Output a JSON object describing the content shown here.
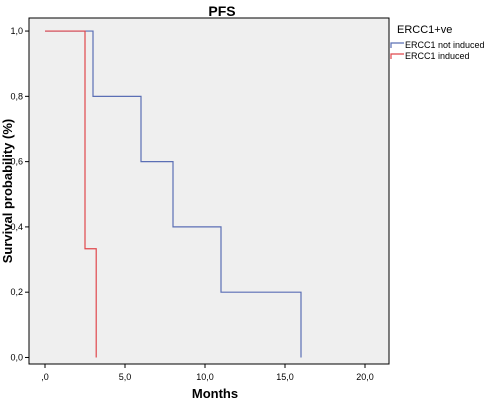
{
  "chart_data": {
    "type": "line",
    "title": "PFS",
    "xlabel": "Months",
    "ylabel": "Survival probability (%)",
    "xlim": [
      -1,
      21.5
    ],
    "ylim": [
      -0.02,
      1.04
    ],
    "x_ticks": [
      0,
      5,
      10,
      15,
      20
    ],
    "x_tick_labels": [
      ",0",
      "5,0",
      "10,0",
      "15,0",
      "20,0"
    ],
    "y_ticks": [
      0,
      0.2,
      0.4,
      0.6,
      0.8,
      1.0
    ],
    "y_tick_labels": [
      "0,0",
      "0,2",
      "0,4",
      "0,6",
      "0,8",
      "1,0"
    ],
    "step": true,
    "grid": false,
    "legend": {
      "title": "ERCC1+ve",
      "placement": "top-right"
    },
    "series": [
      {
        "name": "ERCC1 not induced",
        "color": "#5b6fb5",
        "x": [
          0,
          3,
          6,
          8,
          11,
          16,
          16
        ],
        "y": [
          1.0,
          0.8,
          0.6,
          0.4,
          0.2,
          0.2,
          0.0
        ]
      },
      {
        "name": "ERCC1 induced",
        "color": "#e0474c",
        "x": [
          0,
          2.5,
          3.2,
          3.2
        ],
        "y": [
          1.0,
          0.333,
          0.333,
          0.0
        ]
      }
    ]
  },
  "colors": {
    "plot_background": "#efefef",
    "axis": "#000000"
  }
}
